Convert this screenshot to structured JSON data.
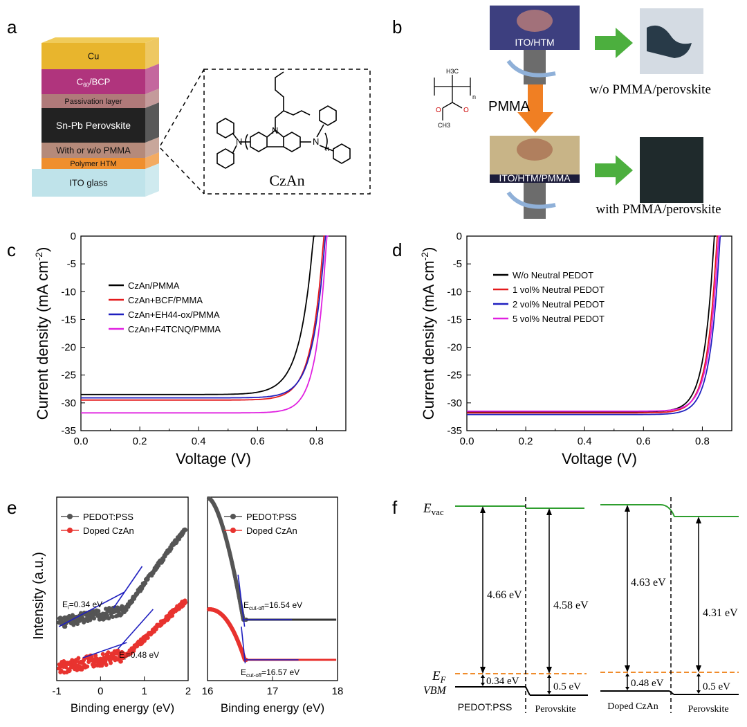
{
  "panels": {
    "a": {
      "label": "a",
      "layers": [
        {
          "name": "Cu",
          "color": "#e8b52d"
        },
        {
          "name": "C60/BCP",
          "color": "#b0347d"
        },
        {
          "name": "Passivation layer",
          "color": "#b07a7a"
        },
        {
          "name": "Sn-Pb Perovskite",
          "color": "#222222"
        },
        {
          "name": "With or w/o PMMA",
          "color": "#b58a7a"
        },
        {
          "name": "Polymer HTM",
          "color": "#ef8f2e"
        },
        {
          "name": "ITO glass",
          "color": "#bfe3ea"
        }
      ],
      "c60_main": "C",
      "c60_sub": "60",
      "c60_rest": "/BCP",
      "molecule_label": "CzAn",
      "mol_atoms": {
        "n": "N",
        "n_sub": "n"
      }
    },
    "b": {
      "label": "b",
      "top_sample": "ITO/HTM",
      "bottom_sample": "ITO/HTM/PMMA",
      "pmma": "PMMA",
      "top_result": "w/o PMMA/perovskite",
      "bottom_result": "with PMMA/perovskite",
      "struct_ch3": "H3C",
      "struct_o": "O",
      "struct_ch3b": "CH3",
      "struct_n": "n"
    },
    "c": {
      "label": "c"
    },
    "d": {
      "label": "d"
    },
    "e": {
      "label": "e"
    },
    "f": {
      "label": "f",
      "evac": "E",
      "evac_sub": "vac",
      "ef": "E",
      "ef_sub": "F",
      "vbm": "VBM",
      "left_gap1": "4.66 eV",
      "left_gap2": "4.58 eV",
      "left_vbm1": "0.34 eV",
      "left_vbm2": "0.5 eV",
      "left_mat1": "PEDOT:PSS",
      "left_mat2": "Perovskite",
      "right_gap1": "4.63 eV",
      "right_gap2": "4.31 eV",
      "right_vbm1": "0.48 eV",
      "right_vbm2": "0.5 eV",
      "right_mat1": "Doped CzAn",
      "right_mat2": "Perovskite"
    }
  },
  "chart_data": [
    {
      "id": "c",
      "type": "line",
      "xlabel": "Voltage (V)",
      "ylabel": "Current density (mA cm",
      "ylabel_sup": "-2",
      "ylabel_end": ")",
      "xlim": [
        0,
        0.9
      ],
      "ylim": [
        -35,
        0
      ],
      "xticks": [
        "0.0",
        "0.2",
        "0.4",
        "0.6",
        "0.8"
      ],
      "yticks": [
        "0",
        "-5",
        "-10",
        "-15",
        "-20",
        "-25",
        "-30",
        "-35"
      ],
      "series": [
        {
          "name": "CzAn/PMMA",
          "color": "#000000",
          "jsc": -28.5,
          "voc": 0.79,
          "knee": 0.045
        },
        {
          "name": "CzAn+BCF/PMMA",
          "color": "#e41a1c",
          "jsc": -29.5,
          "voc": 0.825,
          "knee": 0.04
        },
        {
          "name": "CzAn+EH44-ox/PMMA",
          "color": "#1f1fbf",
          "jsc": -29.1,
          "voc": 0.83,
          "knee": 0.04
        },
        {
          "name": "CzAn+F4TCNQ/PMMA",
          "color": "#e020e0",
          "jsc": -31.8,
          "voc": 0.835,
          "knee": 0.035
        }
      ]
    },
    {
      "id": "d",
      "type": "line",
      "xlabel": "Voltage (V)",
      "ylabel": "Current density (mA cm",
      "ylabel_sup": "-2",
      "ylabel_end": ")",
      "xlim": [
        0,
        0.9
      ],
      "ylim": [
        -35,
        0
      ],
      "xticks": [
        "0.0",
        "0.2",
        "0.4",
        "0.6",
        "0.8"
      ],
      "yticks": [
        "0",
        "-5",
        "-10",
        "-15",
        "-20",
        "-25",
        "-30",
        "-35"
      ],
      "series": [
        {
          "name": "W/o Neutral PEDOT",
          "color": "#000000",
          "jsc": -31.6,
          "voc": 0.84,
          "knee": 0.032
        },
        {
          "name": "1 vol% Neutral PEDOT",
          "color": "#e41a1c",
          "jsc": -31.8,
          "voc": 0.85,
          "knee": 0.032
        },
        {
          "name": "2 vol% Neutral PEDOT",
          "color": "#1f1fbf",
          "jsc": -32.1,
          "voc": 0.86,
          "knee": 0.032
        },
        {
          "name": "5 vol% Neutral PEDOT",
          "color": "#e020e0",
          "jsc": -31.5,
          "voc": 0.855,
          "knee": 0.032
        }
      ]
    },
    {
      "id": "e-left",
      "type": "scatter",
      "xlabel": "Binding energy (eV)",
      "ylabel": "Intensity (a.u.)",
      "xlim": [
        -1,
        2
      ],
      "xticks": [
        "-1",
        "0",
        "1",
        "2"
      ],
      "series": [
        {
          "name": "PEDOT:PSS",
          "color": "#555555"
        },
        {
          "name": "Doped CzAn",
          "color": "#e8332f"
        }
      ],
      "annotations": [
        {
          "main": "E",
          "sub": "i",
          "rest": "=0.34 eV",
          "x": 0.34
        },
        {
          "main": "E",
          "sub": "i",
          "rest": "=0.48 eV",
          "x": 0.48
        }
      ]
    },
    {
      "id": "e-right",
      "type": "scatter",
      "xlabel": "Binding energy (eV)",
      "xlim": [
        16,
        18
      ],
      "xticks": [
        "16",
        "17",
        "18"
      ],
      "series": [
        {
          "name": "PEDOT:PSS",
          "color": "#555555"
        },
        {
          "name": "Doped CzAn",
          "color": "#e8332f"
        }
      ],
      "annotations": [
        {
          "main": "E",
          "sub": "cut-off",
          "rest": "=16.54 eV",
          "x": 16.54
        },
        {
          "main": "E",
          "sub": "cut-off",
          "rest": "=16.57 eV",
          "x": 16.57
        }
      ]
    }
  ]
}
